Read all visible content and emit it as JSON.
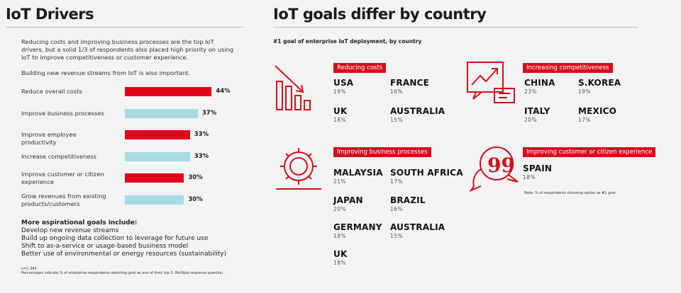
{
  "left": {
    "title": "IoT Drivers",
    "intro": "Reducing costs and improving business processes are the top IoT drivers, but a solid 1/3 of respondents also placed high priority on using IoT to improve competitiveness or customer experience.",
    "intro2": "Building new revenue streams from IoT is also important.",
    "drivers": [
      {
        "label": "Reduce overall costs",
        "value": 44,
        "display": "44%",
        "color": "#e2001a"
      },
      {
        "label": "Improve business processes",
        "value": 37,
        "display": "37%",
        "color": "#a9dbe3"
      },
      {
        "label": "Improve employee productivity",
        "value": 33,
        "display": "33%",
        "color": "#e2001a"
      },
      {
        "label": "Increase competitiveness",
        "value": 33,
        "display": "33%",
        "color": "#a9dbe3"
      },
      {
        "label": "Improve customer or citizen experience",
        "value": 30,
        "display": "30%",
        "color": "#e2001a"
      },
      {
        "label": "Grow revenues from existing products/customers",
        "value": 30,
        "display": "30%",
        "color": "#a9dbe3"
      }
    ],
    "aspirational_title": "More aspirational goals include:",
    "aspirational": [
      "Develop new revenue streams",
      "Build up ongoing data collection to leverage for future use",
      "Shift to as-a-service or usage-based business model",
      "Better use of environmental or energy resources (sustainability)"
    ],
    "n": "n=1,343",
    "footnote": "Percentages indicate % of enterprise respondents selecting goal as one of their top 3. Multiple response question."
  },
  "right": {
    "title": "IoT goals differ by country",
    "subtitle": "#1 goal of enterprise IoT deployment, by country",
    "groups": [
      {
        "label": "Reducing costs",
        "icon": "declining-chart-icon",
        "countries": [
          {
            "name": "USA",
            "pct": "19%"
          },
          {
            "name": "FRANCE",
            "pct": "16%"
          },
          {
            "name": "UK",
            "pct": "18%"
          },
          {
            "name": "AUSTRALIA",
            "pct": "15%"
          }
        ]
      },
      {
        "label": "Increasing competitiveness",
        "icon": "growth-chart-icon",
        "countries": [
          {
            "name": "CHINA",
            "pct": "23%"
          },
          {
            "name": "S.KOREA",
            "pct": "19%"
          },
          {
            "name": "ITALY",
            "pct": "20%"
          },
          {
            "name": "MEXICO",
            "pct": "17%"
          }
        ]
      },
      {
        "label": "Improving business processes",
        "icon": "gear-icon",
        "countries": [
          {
            "name": "MALAYSIA",
            "pct": "21%"
          },
          {
            "name": "SOUTH AFRICA",
            "pct": "17%"
          },
          {
            "name": "JAPAN",
            "pct": "20%"
          },
          {
            "name": "BRAZIL",
            "pct": "16%"
          },
          {
            "name": "GERMANY",
            "pct": "18%"
          },
          {
            "name": "AUSTRALIA",
            "pct": "15%"
          },
          {
            "name": "UK",
            "pct": "18%"
          }
        ]
      },
      {
        "label": "Improving customer or citizen experience",
        "icon": "quote-bubble-icon",
        "countries": [
          {
            "name": "SPAIN",
            "pct": "18%"
          }
        ]
      }
    ],
    "note": "Note: % of respondents choosing option as #1 goal"
  }
}
